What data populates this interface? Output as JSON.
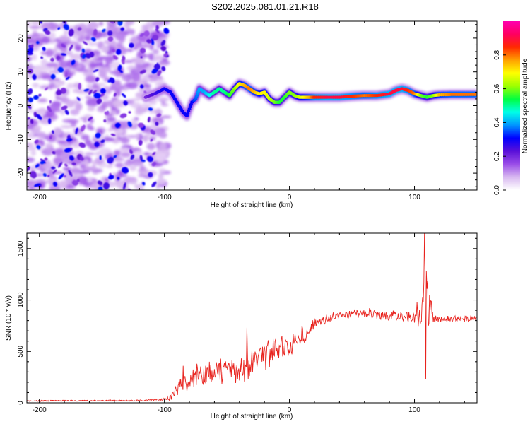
{
  "title": "S202.2025.081.01.21.R18",
  "colors": {
    "snr_line": "#e8231e",
    "axis": "#000000",
    "background": "#ffffff"
  },
  "chart_data": [
    {
      "type": "heatmap",
      "name": "spectrogram",
      "xlabel": "Height of straight line (km)",
      "ylabel": "Frequency (Hz)",
      "xlim": [
        -210,
        150
      ],
      "ylim": [
        -25,
        25
      ],
      "xticks": [
        -200,
        -100,
        0,
        100
      ],
      "yticks": [
        -20,
        -10,
        0,
        10,
        20
      ],
      "noise_region_x": [
        -210,
        -98
      ],
      "signal_track": {
        "x": [
          -115,
          -108,
          -100,
          -95,
          -90,
          -85,
          -82,
          -78,
          -75,
          -72,
          -68,
          -64,
          -60,
          -56,
          -52,
          -48,
          -44,
          -40,
          -36,
          -32,
          -28,
          -24,
          -20,
          -16,
          -12,
          -8,
          -4,
          0,
          4,
          8,
          12,
          16,
          20,
          30,
          40,
          50,
          60,
          70,
          80,
          85,
          90,
          95,
          100,
          105,
          110,
          115,
          120,
          130,
          140,
          150
        ],
        "freq": [
          2.5,
          3.5,
          5,
          4,
          1,
          -2,
          -3,
          1,
          2,
          5,
          4,
          3,
          4,
          5,
          4,
          3,
          5,
          6.5,
          6,
          5,
          4,
          3.5,
          4,
          2,
          1,
          1,
          2.5,
          4,
          3,
          2.5,
          2.5,
          2.5,
          2.5,
          2.5,
          2.5,
          2.8,
          3,
          3,
          3.5,
          4.5,
          5,
          4.5,
          3.5,
          3,
          2.5,
          3,
          3.2,
          3.3,
          3.3,
          3.3
        ],
        "amplitude": [
          0.2,
          0.25,
          0.3,
          0.3,
          0.3,
          0.3,
          0.3,
          0.3,
          0.35,
          0.4,
          0.4,
          0.45,
          0.5,
          0.5,
          0.5,
          0.55,
          0.6,
          0.7,
          0.75,
          0.8,
          0.75,
          0.7,
          0.7,
          0.65,
          0.6,
          0.55,
          0.55,
          0.6,
          0.6,
          0.65,
          0.7,
          0.75,
          0.85,
          0.9,
          0.9,
          0.85,
          0.8,
          0.85,
          0.9,
          0.9,
          0.9,
          0.85,
          0.8,
          0.6,
          0.55,
          0.6,
          0.75,
          0.8,
          0.8,
          0.8
        ]
      }
    },
    {
      "type": "line",
      "name": "snr",
      "xlabel": "Height of straight line (km)",
      "ylabel": "SNR (10 * v/v)",
      "xlim": [
        -210,
        150
      ],
      "ylim": [
        0,
        1650
      ],
      "xticks": [
        -200,
        -100,
        0,
        100
      ],
      "yticks": [
        0,
        500,
        1000,
        1500
      ],
      "series": [
        {
          "name": "SNR",
          "x": [
            -210,
            -190,
            -170,
            -150,
            -130,
            -115,
            -105,
            -98,
            -92,
            -88,
            -80,
            -70,
            -60,
            -50,
            -40,
            -30,
            -20,
            -10,
            0,
            10,
            15,
            20,
            30,
            40,
            50,
            60,
            70,
            80,
            90,
            100,
            104,
            106,
            108,
            110,
            115,
            120,
            130,
            140,
            150
          ],
          "mean": [
            20,
            20,
            20,
            22,
            22,
            25,
            30,
            40,
            80,
            150,
            220,
            260,
            300,
            300,
            320,
            380,
            450,
            520,
            560,
            640,
            720,
            780,
            820,
            850,
            860,
            870,
            860,
            850,
            840,
            830,
            820,
            800,
            1100,
            1000,
            820,
            820,
            820,
            820,
            820
          ],
          "amp": [
            8,
            8,
            8,
            8,
            8,
            10,
            10,
            20,
            80,
            120,
            130,
            140,
            150,
            160,
            170,
            180,
            180,
            170,
            160,
            140,
            90,
            70,
            60,
            50,
            50,
            50,
            60,
            70,
            80,
            90,
            120,
            200,
            450,
            500,
            60,
            50,
            40,
            40,
            40
          ],
          "spikes": [
            [
              -85,
              360
            ],
            [
              -74,
              380
            ],
            [
              -55,
              430
            ],
            [
              -52,
              390
            ],
            [
              -34,
              730
            ],
            [
              -26,
              350
            ],
            [
              -22,
              400
            ],
            [
              -14,
              530
            ],
            [
              -8,
              560
            ],
            [
              1,
              590
            ],
            [
              9,
              610
            ],
            [
              14,
              710
            ],
            [
              36,
              820
            ],
            [
              52,
              900
            ],
            [
              64,
              920
            ],
            [
              102,
              980
            ],
            [
              108,
              1670
            ],
            [
              109,
              230
            ]
          ]
        }
      ]
    }
  ],
  "colorbar": {
    "label": "Normalized spectral amplitude",
    "ticks": [
      "0.0",
      "0.2",
      "0.4",
      "0.6",
      "0.8"
    ],
    "tick_values": [
      0.0,
      0.2,
      0.4,
      0.6,
      0.8
    ],
    "range": [
      0,
      1
    ],
    "colors": [
      "#ffffff",
      "#d8b8f0",
      "#9a4de8",
      "#5a10d8",
      "#0000ff",
      "#0096ff",
      "#00ffe8",
      "#00ff40",
      "#9cff00",
      "#ffff00",
      "#ffa000",
      "#ff2a00",
      "#ff0060",
      "#ff00b0"
    ]
  }
}
